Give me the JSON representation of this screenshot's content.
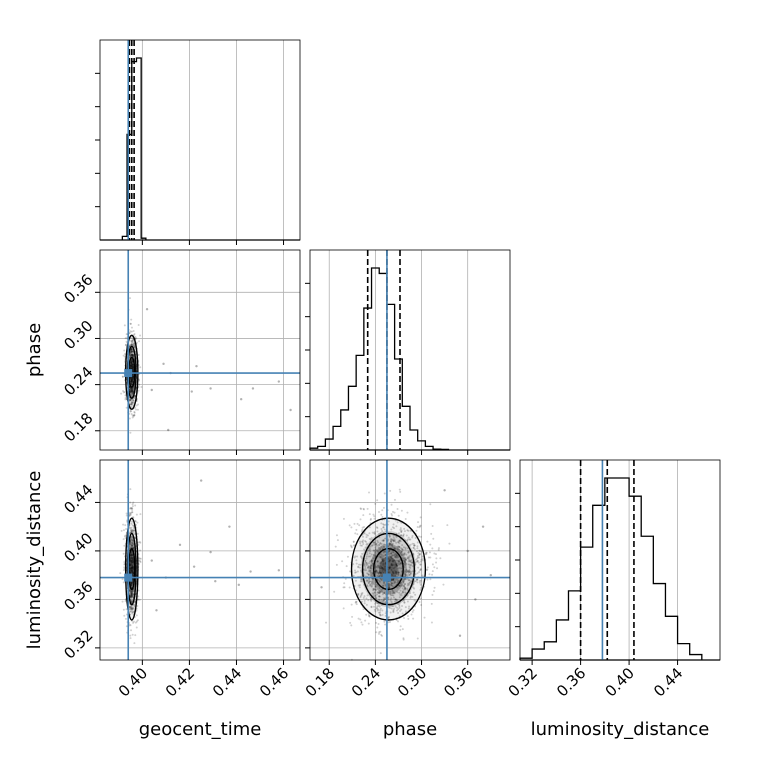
{
  "chart_data": {
    "type": "corner",
    "parameters": [
      "geocent_time",
      "phase",
      "luminosity_distance"
    ],
    "truth": {
      "geocent_time": 0.394,
      "phase": 0.255,
      "luminosity_distance": 0.378
    },
    "grid": true,
    "ranges": {
      "geocent_time": [
        0.382,
        0.467
      ],
      "phase": [
        0.155,
        0.415
      ],
      "luminosity_distance": [
        0.31,
        0.475
      ]
    },
    "ticks": {
      "geocent_time": [
        0.4,
        0.42,
        0.44,
        0.46
      ],
      "phase": [
        0.18,
        0.24,
        0.3,
        0.36
      ],
      "luminosity_distance": [
        0.32,
        0.36,
        0.4,
        0.44
      ]
    },
    "tick_labels": {
      "geocent_time": [
        "0.40",
        "0.42",
        "0.44",
        "0.46"
      ],
      "phase": [
        "0.18",
        "0.24",
        "0.30",
        "0.36"
      ],
      "luminosity_distance": [
        "0.32",
        "0.36",
        "0.40",
        "0.44"
      ]
    },
    "quantiles": {
      "geocent_time": [
        0.3945,
        0.3955,
        0.3965
      ],
      "phase": [
        0.23,
        0.255,
        0.272
      ],
      "luminosity_distance": [
        0.36,
        0.382,
        0.404
      ]
    },
    "histograms": {
      "geocent_time": {
        "bin_edges": [
          0.3915,
          0.3935,
          0.3955,
          0.3975,
          0.3995,
          0.4015
        ],
        "counts": [
          0.02,
          0.58,
          0.98,
          1.0,
          0.01
        ]
      },
      "phase": {
        "bin_edges": [
          0.155,
          0.165,
          0.175,
          0.185,
          0.195,
          0.205,
          0.215,
          0.225,
          0.235,
          0.245,
          0.255,
          0.265,
          0.275,
          0.285,
          0.295,
          0.305,
          0.315,
          0.325,
          0.335
        ],
        "counts": [
          0.01,
          0.02,
          0.06,
          0.13,
          0.22,
          0.35,
          0.52,
          0.78,
          1.0,
          0.97,
          0.8,
          0.5,
          0.24,
          0.11,
          0.05,
          0.02,
          0.005,
          0.003
        ]
      },
      "luminosity_distance": {
        "bin_edges": [
          0.31,
          0.32,
          0.33,
          0.34,
          0.35,
          0.36,
          0.37,
          0.38,
          0.39,
          0.4,
          0.41,
          0.42,
          0.43,
          0.44,
          0.45,
          0.46
        ],
        "counts": [
          0.01,
          0.06,
          0.1,
          0.22,
          0.38,
          0.62,
          0.85,
          1.0,
          1.0,
          0.9,
          0.68,
          0.42,
          0.24,
          0.09,
          0.03
        ]
      }
    },
    "joint": {
      "phase_vs_geocent_time": {
        "center": [
          0.3955,
          0.256
        ],
        "spread": [
          0.0013,
          0.024
        ],
        "n_samples": 900,
        "outliers": [
          [
            0.404,
            0.233
          ],
          [
            0.409,
            0.267
          ],
          [
            0.412,
            0.255
          ],
          [
            0.421,
            0.231
          ],
          [
            0.423,
            0.264
          ],
          [
            0.429,
            0.235
          ],
          [
            0.442,
            0.221
          ],
          [
            0.447,
            0.235
          ],
          [
            0.458,
            0.244
          ],
          [
            0.463,
            0.207
          ],
          [
            0.402,
            0.338
          ],
          [
            0.411,
            0.181
          ]
        ]
      },
      "luminosity_distance_vs_geocent_time": {
        "center": [
          0.3955,
          0.385
        ],
        "spread": [
          0.0013,
          0.021
        ],
        "n_samples": 900,
        "outliers": [
          [
            0.404,
            0.392
          ],
          [
            0.41,
            0.378
          ],
          [
            0.416,
            0.405
          ],
          [
            0.422,
            0.387
          ],
          [
            0.429,
            0.399
          ],
          [
            0.431,
            0.375
          ],
          [
            0.437,
            0.42
          ],
          [
            0.441,
            0.372
          ],
          [
            0.446,
            0.383
          ],
          [
            0.425,
            0.458
          ],
          [
            0.458,
            0.384
          ],
          [
            0.406,
            0.351
          ]
        ]
      },
      "luminosity_distance_vs_phase": {
        "center": [
          0.257,
          0.385
        ],
        "spread": [
          0.024,
          0.021
        ],
        "n_samples": 1400,
        "outliers": [
          [
            0.36,
            0.4
          ],
          [
            0.37,
            0.36
          ],
          [
            0.38,
            0.42
          ],
          [
            0.17,
            0.37
          ],
          [
            0.35,
            0.33
          ],
          [
            0.33,
            0.45
          ],
          [
            0.39,
            0.38
          ]
        ]
      }
    }
  }
}
